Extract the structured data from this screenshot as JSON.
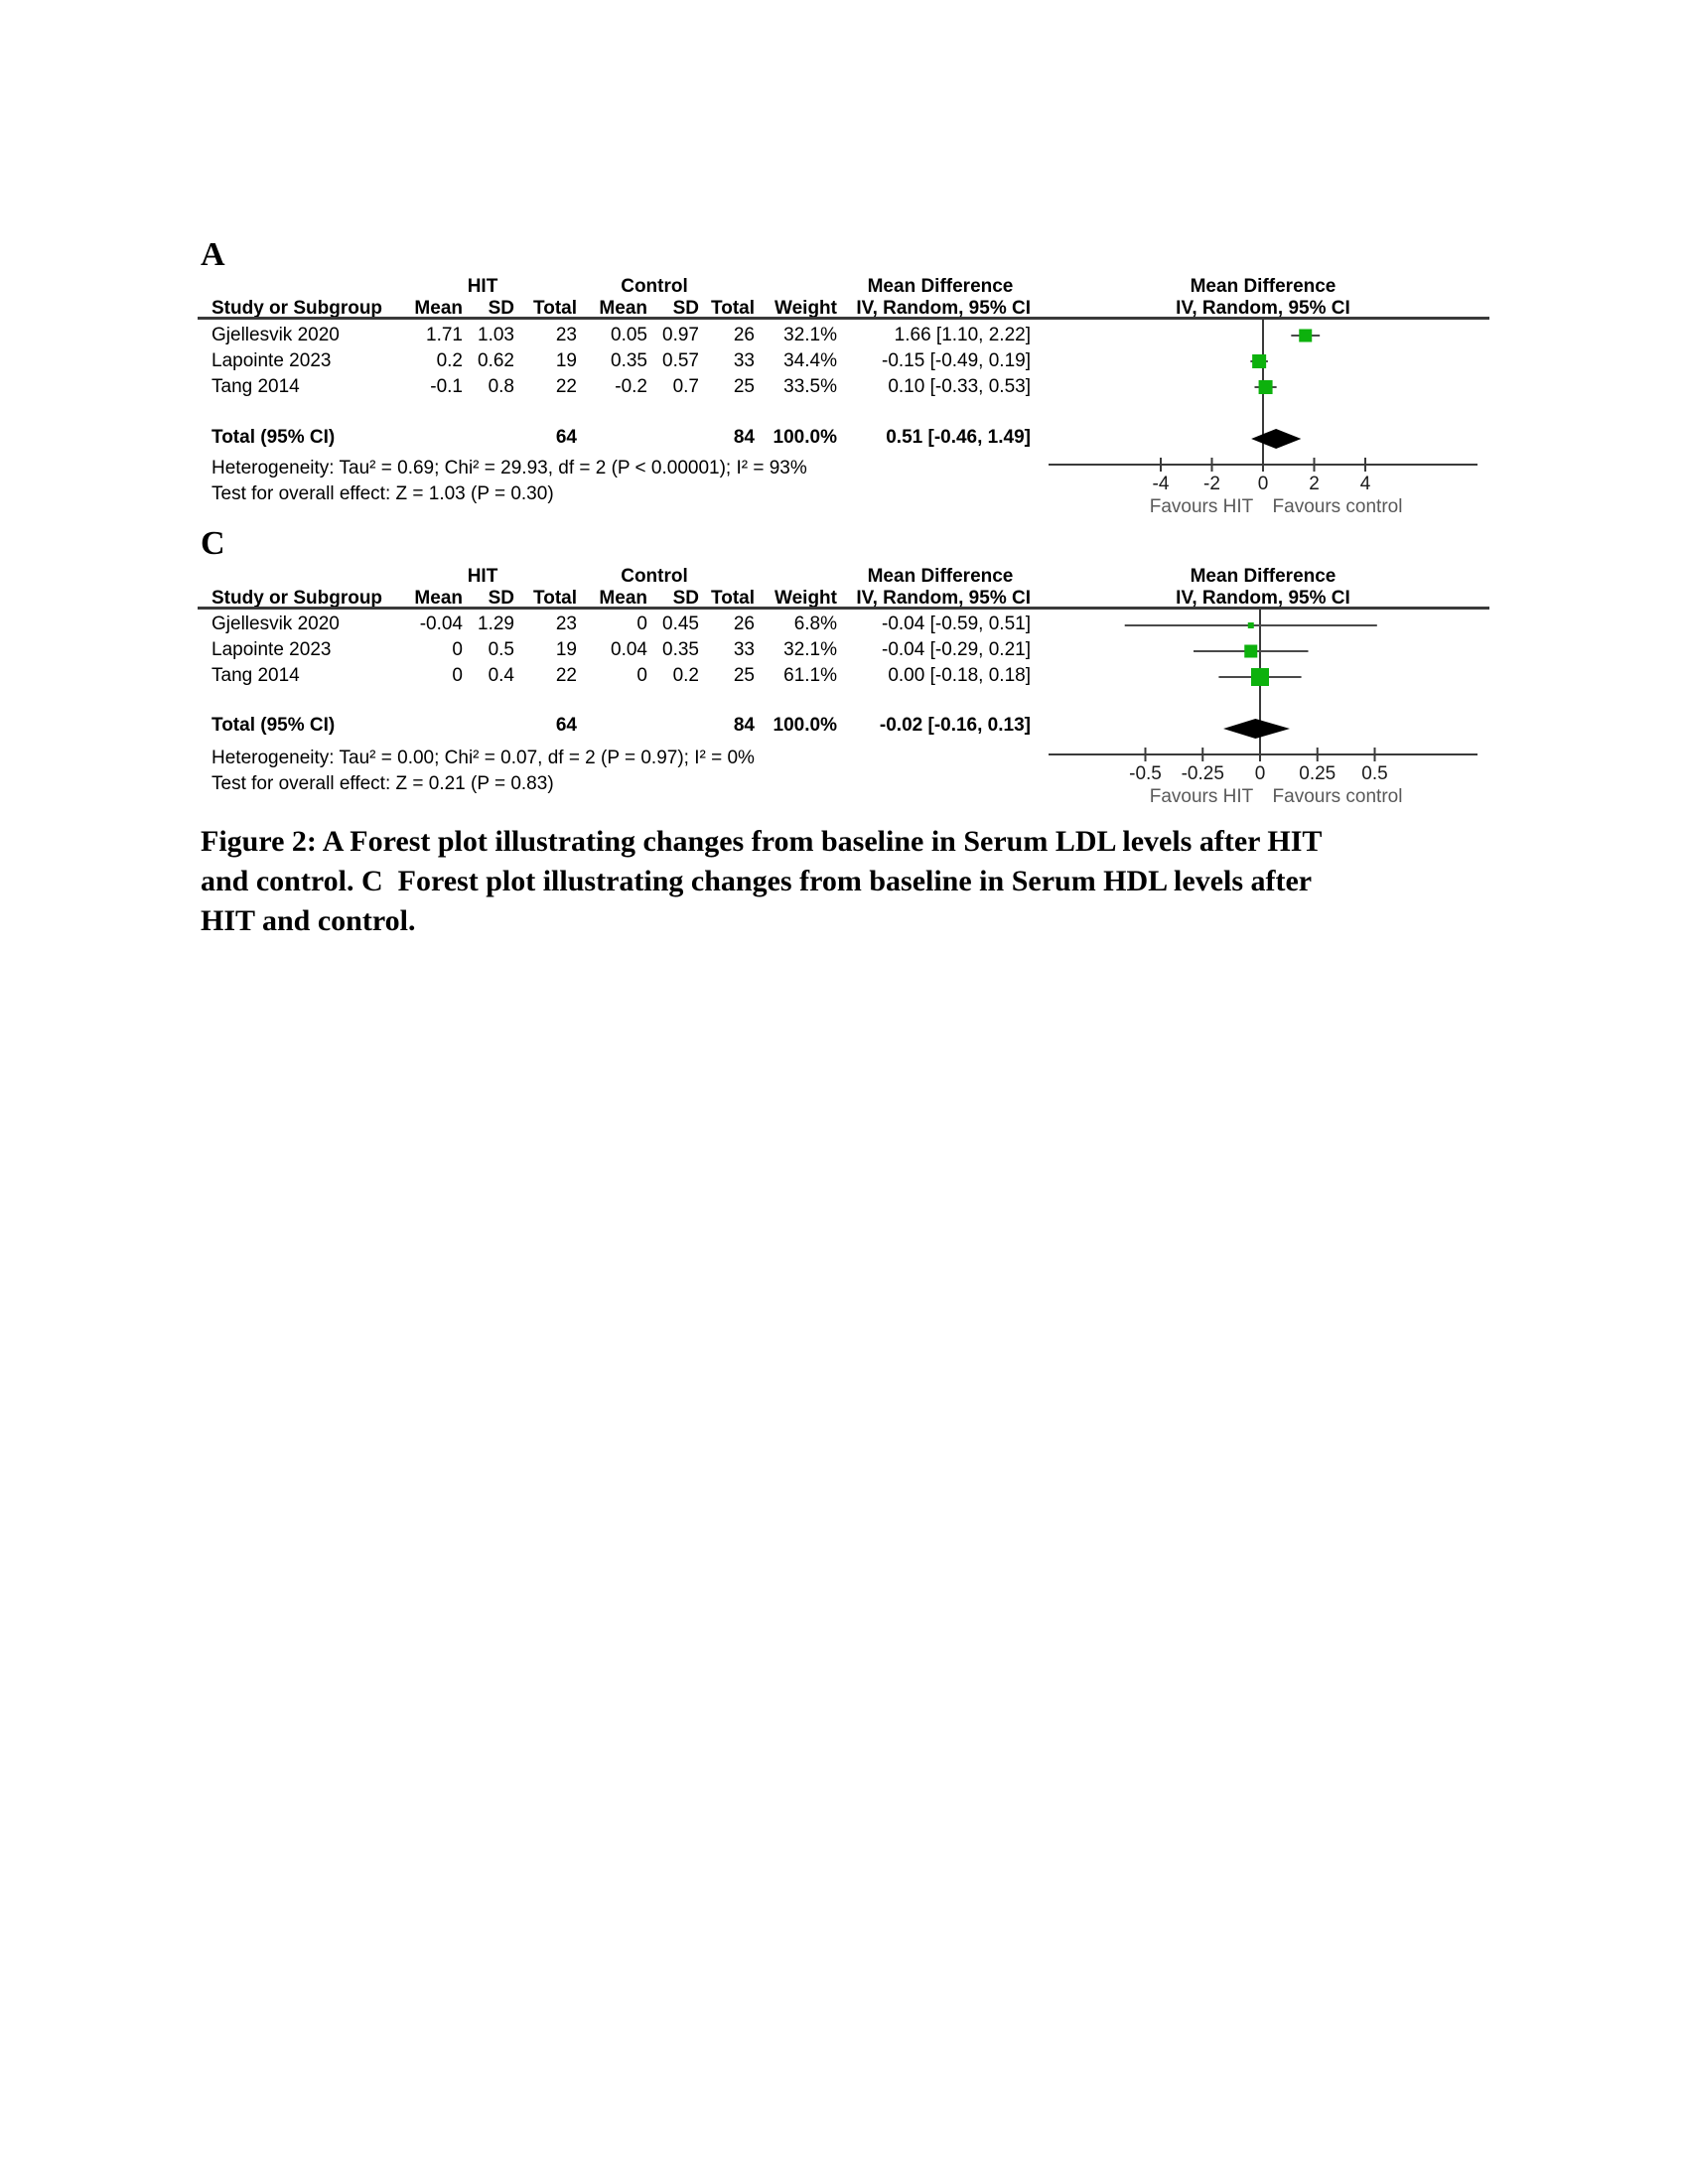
{
  "figure": {
    "caption_lines": [
      "Figure 2: A Forest plot illustrating changes from baseline in Serum LDL levels after HIT",
      "and control. C  Forest plot illustrating changes from baseline in Serum HDL levels after",
      "HIT and control."
    ]
  },
  "colors": {
    "marker_green": "#0db10d",
    "line_dark": "#3a3a3a",
    "whisker": "#4a4a4a",
    "diamond": "#000000",
    "favours_gray": "#595959",
    "tick_text": "#1a1a1a"
  },
  "table_headers": {
    "group_hit": "HIT",
    "group_control": "Control",
    "group_md": "Mean Difference",
    "plot_md": "Mean Difference",
    "col_study": "Study or Subgroup",
    "col_mean": "Mean",
    "col_sd": "SD",
    "col_total": "Total",
    "col_weight": "Weight",
    "col_ci": "IV, Random, 95% CI",
    "plot_ci": "IV, Random, 95% CI"
  },
  "panels": [
    {
      "label": "A",
      "rows": [
        {
          "study": "Gjellesvik 2020",
          "mean1": "1.71",
          "sd1": "1.03",
          "total1": "23",
          "mean2": "0.05",
          "sd2": "0.97",
          "total2": "26",
          "weight": "32.1%",
          "ci_text": "1.66 [1.10, 2.22]"
        },
        {
          "study": "Lapointe 2023",
          "mean1": "0.2",
          "sd1": "0.62",
          "total1": "19",
          "mean2": "0.35",
          "sd2": "0.57",
          "total2": "33",
          "weight": "34.4%",
          "ci_text": "-0.15 [-0.49, 0.19]"
        },
        {
          "study": "Tang 2014",
          "mean1": "-0.1",
          "sd1": "0.8",
          "total1": "22",
          "mean2": "-0.2",
          "sd2": "0.7",
          "total2": "25",
          "weight": "33.5%",
          "ci_text": "0.10 [-0.33, 0.53]"
        }
      ],
      "total_row": {
        "label": "Total (95% CI)",
        "total1": "64",
        "total2": "84",
        "weight": "100.0%",
        "ci_text": "0.51 [-0.46, 1.49]"
      },
      "heterogeneity": "Heterogeneity: Tau² = 0.69; Chi² = 29.93, df = 2 (P < 0.00001); I² = 93%",
      "overall": "Test for overall effect: Z = 1.03 (P = 0.30)"
    },
    {
      "label": "C",
      "rows": [
        {
          "study": "Gjellesvik 2020",
          "mean1": "-0.04",
          "sd1": "1.29",
          "total1": "23",
          "mean2": "0",
          "sd2": "0.45",
          "total2": "26",
          "weight": "6.8%",
          "ci_text": "-0.04 [-0.59, 0.51]"
        },
        {
          "study": "Lapointe 2023",
          "mean1": "0",
          "sd1": "0.5",
          "total1": "19",
          "mean2": "0.04",
          "sd2": "0.35",
          "total2": "33",
          "weight": "32.1%",
          "ci_text": "-0.04 [-0.29, 0.21]"
        },
        {
          "study": "Tang 2014",
          "mean1": "0",
          "sd1": "0.4",
          "total1": "22",
          "mean2": "0",
          "sd2": "0.2",
          "total2": "25",
          "weight": "61.1%",
          "ci_text": "0.00 [-0.18, 0.18]"
        }
      ],
      "total_row": {
        "label": "Total (95% CI)",
        "total1": "64",
        "total2": "84",
        "weight": "100.0%",
        "ci_text": "-0.02 [-0.16, 0.13]"
      },
      "heterogeneity": "Heterogeneity: Tau² = 0.00; Chi² = 0.07, df = 2 (P = 0.97); I² = 0%",
      "overall": "Test for overall effect: Z = 0.21 (P = 0.83)"
    }
  ],
  "chart_data": [
    {
      "type": "scatter",
      "subtype": "forest-plot",
      "panel": "A",
      "title": "Mean Difference — IV, Random, 95% CI (Serum LDL, HIT vs control)",
      "studies": [
        "Gjellesvik 2020",
        "Lapointe 2023",
        "Tang 2014"
      ],
      "estimates": [
        1.66,
        -0.15,
        0.1
      ],
      "ci_low": [
        1.1,
        -0.49,
        -0.33
      ],
      "ci_high": [
        2.22,
        0.19,
        0.53
      ],
      "weights_pct": [
        32.1,
        34.4,
        33.5
      ],
      "total": {
        "estimate": 0.51,
        "ci_low": -0.46,
        "ci_high": 1.49
      },
      "xlim": [
        -4,
        4
      ],
      "ticks": [
        -4,
        -2,
        0,
        2,
        4
      ],
      "tick_labels": [
        "-4",
        "-2",
        "0",
        "2",
        "4"
      ],
      "favours_left": "Favours HIT",
      "favours_right": "Favours control"
    },
    {
      "type": "scatter",
      "subtype": "forest-plot",
      "panel": "C",
      "title": "Mean Difference — IV, Random, 95% CI (Serum HDL, HIT vs control)",
      "studies": [
        "Gjellesvik 2020",
        "Lapointe 2023",
        "Tang 2014"
      ],
      "estimates": [
        -0.04,
        -0.04,
        0.0
      ],
      "ci_low": [
        -0.59,
        -0.29,
        -0.18
      ],
      "ci_high": [
        0.51,
        0.21,
        0.18
      ],
      "weights_pct": [
        6.8,
        32.1,
        61.1
      ],
      "total": {
        "estimate": -0.02,
        "ci_low": -0.16,
        "ci_high": 0.13
      },
      "xlim": [
        -0.5,
        0.5
      ],
      "ticks": [
        -0.5,
        -0.25,
        0,
        0.25,
        0.5
      ],
      "tick_labels": [
        "-0.5",
        "-0.25",
        "0",
        "0.25",
        "0.5"
      ],
      "favours_left": "Favours HIT",
      "favours_right": "Favours control"
    }
  ]
}
